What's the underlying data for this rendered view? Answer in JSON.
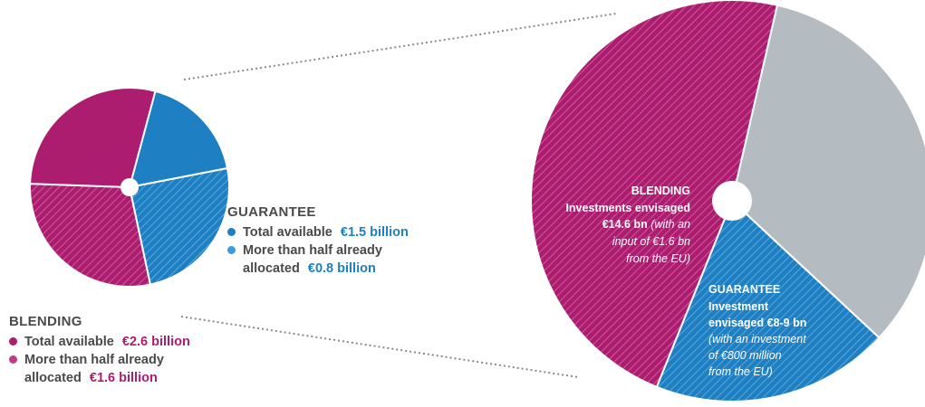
{
  "colors": {
    "magenta": "#ad1d6f",
    "magenta_light": "#c23a87",
    "blue": "#1e7fc2",
    "blue_light": "#3c9bd8",
    "grey": "#b5bcc1",
    "text": "#4a4a4a"
  },
  "chart_data": [
    {
      "type": "pie",
      "slices": [
        {
          "label": "Guarantee - Total available",
          "value": 1.5,
          "unit": "€ billion",
          "color": "#1e7fc2"
        },
        {
          "label": "Guarantee - More than half already allocated",
          "value": 0.8,
          "unit": "€ billion",
          "color": "#3c9bd8"
        },
        {
          "label": "Blending - Total available",
          "value": 2.6,
          "unit": "€ billion",
          "color": "#ad1d6f"
        },
        {
          "label": "Blending - More than half already allocated",
          "value": 1.6,
          "unit": "€ billion",
          "color": "#c23a87"
        }
      ]
    },
    {
      "type": "pie",
      "slices": [
        {
          "label": "Blending",
          "investment_bn": "14.6",
          "eu_input_bn": "1.6",
          "color": "#ad1d6f"
        },
        {
          "label": "Guarantee",
          "investment_bn": "8-9",
          "eu_input_m": "800",
          "color": "#1e7fc2"
        },
        {
          "label": "Remainder",
          "color": "#b5bcc1"
        }
      ]
    }
  ],
  "guarantee_legend": {
    "title": "GUARANTEE",
    "items": [
      {
        "text": "Total available",
        "value": "€1.5 billion"
      },
      {
        "text1": "More than half already",
        "text2": "allocated",
        "value": "€0.8 billion"
      }
    ]
  },
  "blending_legend": {
    "title": "BLENDING",
    "items": [
      {
        "text": "Total available",
        "value": "€2.6 billion"
      },
      {
        "text1": "More than half already",
        "text2": "allocated",
        "value": "€1.6 billion"
      }
    ]
  },
  "big_pie_labels": {
    "blending": {
      "title": "BLENDING",
      "line1": "Investments envisaged",
      "line2_bold": "€14.6 bn",
      "line2_italic": "(with an",
      "line3": "input of €1.6 bn",
      "line4": "from the EU)"
    },
    "guarantee": {
      "title": "GUARANTEE",
      "line1": "Investment",
      "line2": "envisaged €8-9 bn",
      "line3": "(with an investment",
      "line4": "of €800 million",
      "line5": "from the EU)"
    }
  }
}
